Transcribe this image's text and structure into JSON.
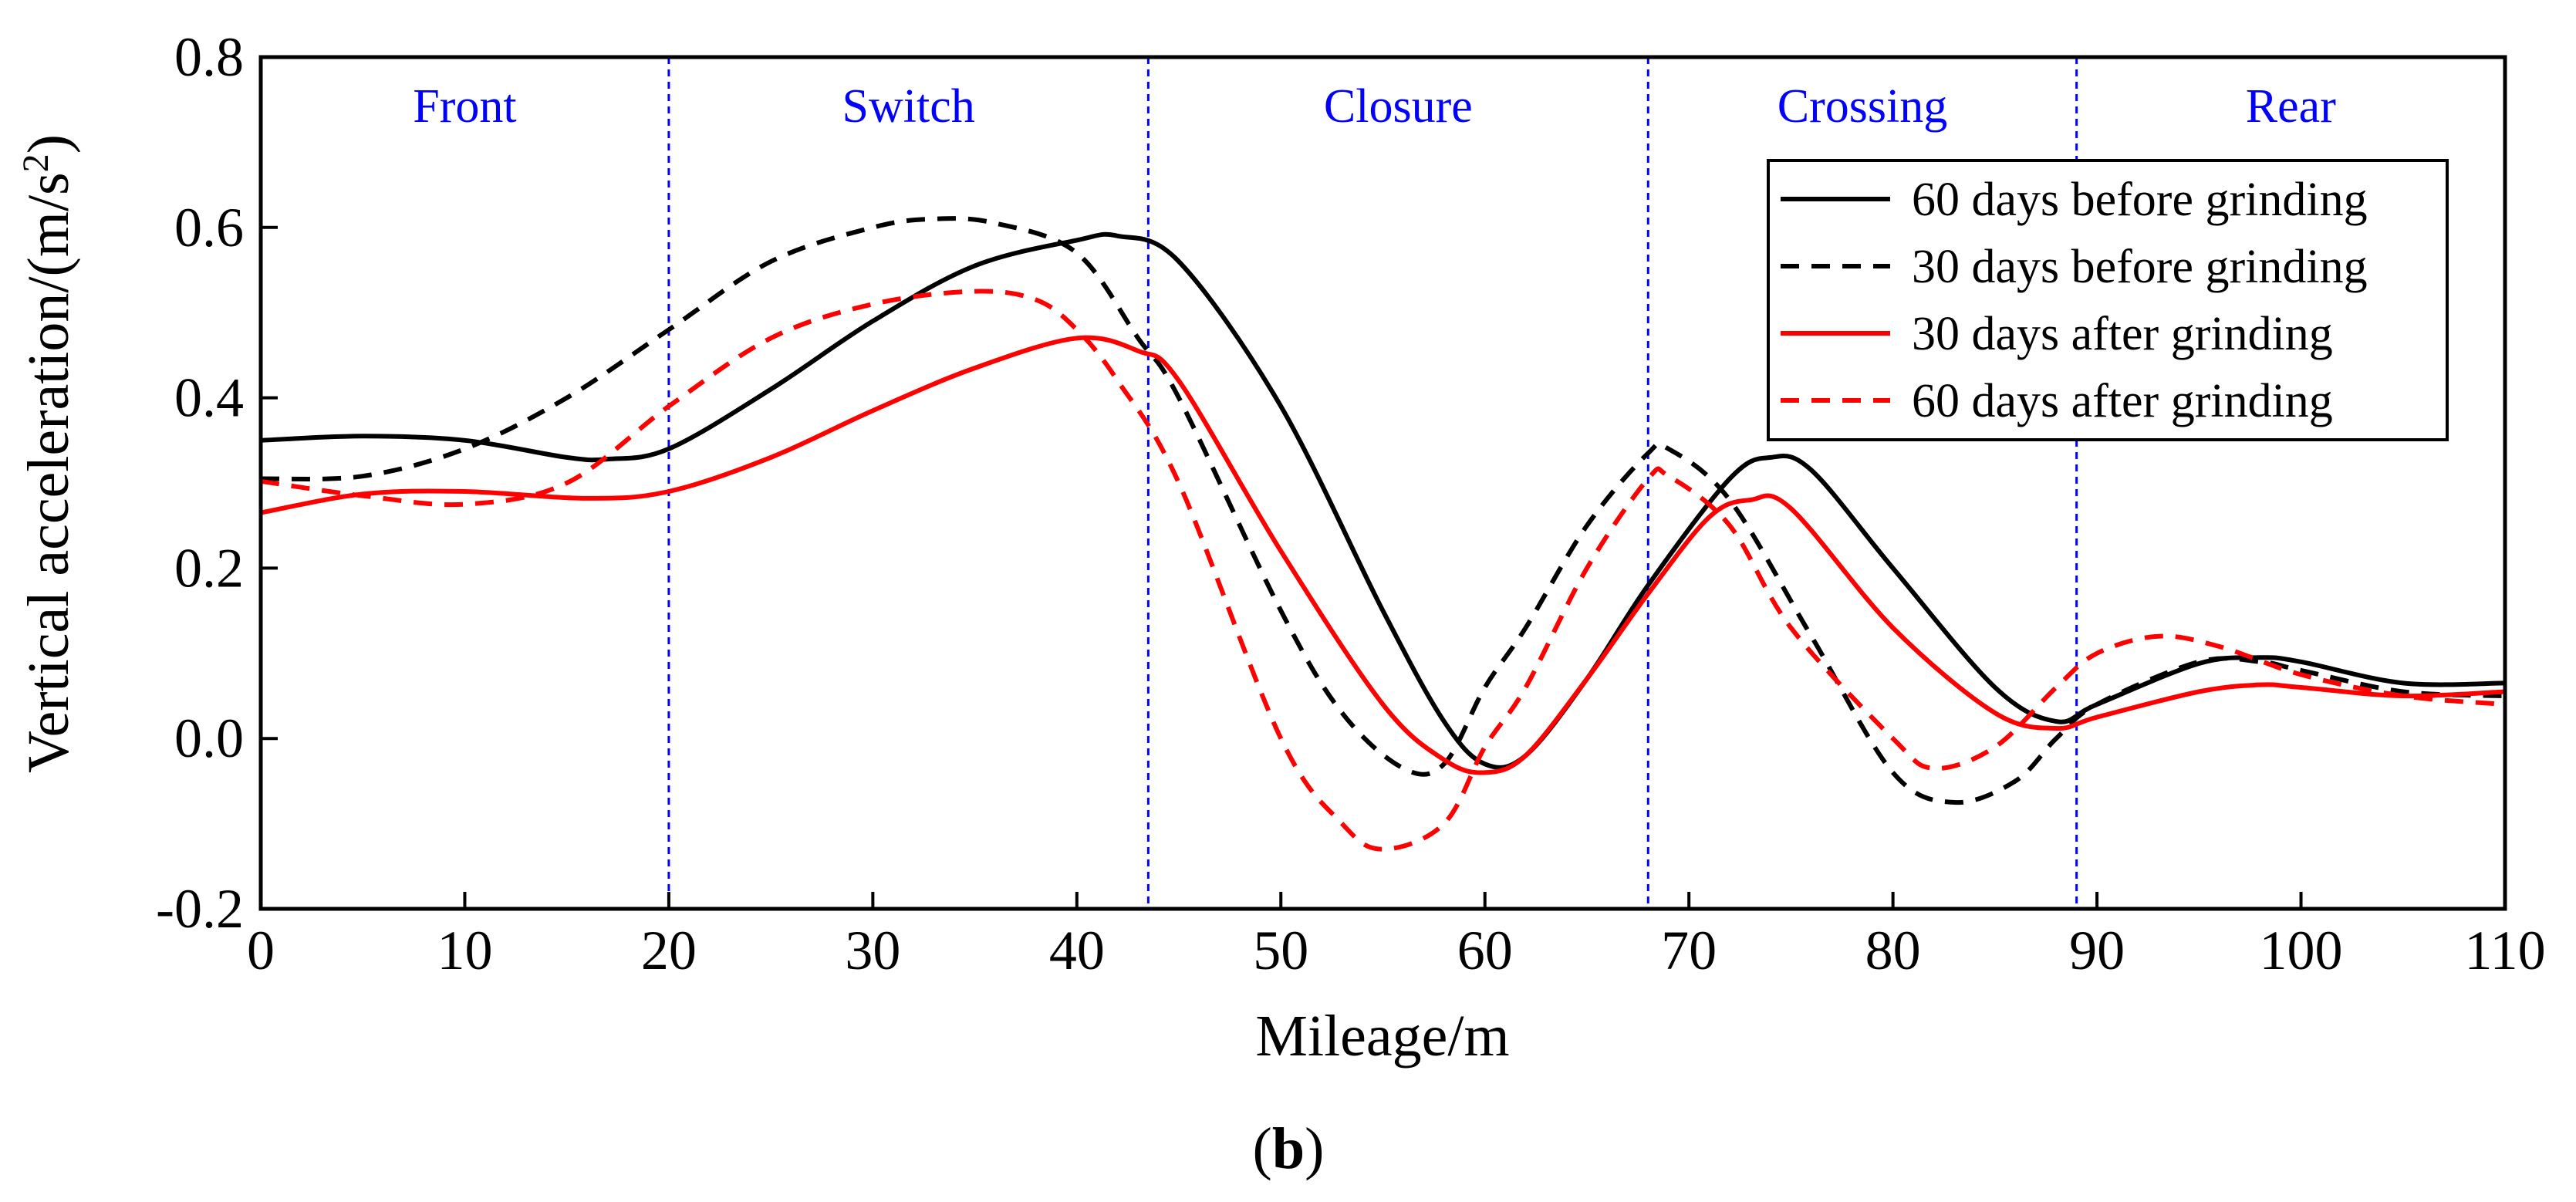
{
  "chart_data": {
    "type": "line",
    "xlabel": "Mileage/m",
    "ylabel": "Vertical acceleration/(m/s²)",
    "ylabel_parts": {
      "main": "Vertical acceleration/(m/s",
      "sup": "2",
      "tail": ")"
    },
    "xlim": [
      0,
      110
    ],
    "ylim": [
      -0.2,
      0.8
    ],
    "xticks": [
      0,
      10,
      20,
      30,
      40,
      50,
      60,
      70,
      80,
      90,
      100,
      110
    ],
    "yticks": [
      -0.2,
      0.0,
      0.2,
      0.4,
      0.6,
      0.8
    ],
    "ytick_labels": [
      "-0.2",
      "0.0",
      "0.2",
      "0.4",
      "0.6",
      "0.8"
    ],
    "xtick_labels": [
      "0",
      "10",
      "20",
      "30",
      "40",
      "50",
      "60",
      "70",
      "80",
      "90",
      "100",
      "110"
    ],
    "grid": false,
    "legend_position": "top-right",
    "figure_label": "(b)",
    "figure_label_parts": {
      "open": "(",
      "letter": "b",
      "close": ")"
    },
    "regions": [
      {
        "label": "Front",
        "start": 0,
        "end": 20
      },
      {
        "label": "Switch",
        "start": 20,
        "end": 43.5
      },
      {
        "label": "Closure",
        "start": 43.5,
        "end": 68
      },
      {
        "label": "Crossing",
        "start": 68,
        "end": 89
      },
      {
        "label": "Rear",
        "start": 89,
        "end": 110
      }
    ],
    "boundaries": [
      20,
      43.5,
      68,
      89
    ],
    "series": [
      {
        "name": "60 days before grinding",
        "color": "#000000",
        "dash": "solid",
        "x": [
          0,
          5,
          10,
          15,
          17,
          20,
          25,
          30,
          35,
          40,
          42,
          45,
          50,
          55,
          58,
          60,
          62,
          65,
          68,
          72,
          74,
          76,
          80,
          85,
          88,
          90,
          95,
          98,
          100,
          105,
          110
        ],
        "y": [
          0.35,
          0.355,
          0.35,
          0.33,
          0.328,
          0.34,
          0.41,
          0.49,
          0.555,
          0.585,
          0.59,
          0.56,
          0.39,
          0.15,
          0.02,
          -0.03,
          -0.02,
          0.07,
          0.18,
          0.305,
          0.33,
          0.315,
          0.2,
          0.06,
          0.02,
          0.04,
          0.088,
          0.095,
          0.09,
          0.065,
          0.065
        ]
      },
      {
        "name": "30 days before grinding",
        "color": "#000000",
        "dash": "dashed",
        "x": [
          0,
          5,
          10,
          15,
          20,
          25,
          30,
          33,
          36,
          40,
          43,
          45,
          50,
          53,
          56,
          58,
          60,
          62,
          65,
          68,
          69,
          72,
          76,
          80,
          83,
          86,
          88,
          90,
          95,
          98,
          100,
          105,
          110
        ],
        "y": [
          0.305,
          0.308,
          0.34,
          0.4,
          0.48,
          0.56,
          0.6,
          0.61,
          0.605,
          0.57,
          0.47,
          0.4,
          0.15,
          0.03,
          -0.035,
          -0.03,
          0.06,
          0.13,
          0.25,
          0.335,
          0.34,
          0.28,
          0.12,
          -0.04,
          -0.075,
          -0.05,
          0.0,
          0.04,
          0.09,
          0.09,
          0.08,
          0.055,
          0.05
        ]
      },
      {
        "name": "30 days after grinding",
        "color": "#ff0000",
        "dash": "solid",
        "x": [
          0,
          5,
          10,
          16,
          20,
          25,
          30,
          35,
          40,
          43,
          45,
          50,
          55,
          58,
          60,
          62,
          65,
          68,
          71,
          73,
          75,
          80,
          85,
          88,
          90,
          95,
          98,
          100,
          105,
          110
        ],
        "y": [
          0.265,
          0.287,
          0.29,
          0.282,
          0.29,
          0.33,
          0.385,
          0.435,
          0.47,
          0.455,
          0.42,
          0.22,
          0.04,
          -0.025,
          -0.04,
          -0.02,
          0.07,
          0.17,
          0.26,
          0.28,
          0.27,
          0.13,
          0.03,
          0.012,
          0.025,
          0.055,
          0.063,
          0.06,
          0.05,
          0.055
        ]
      },
      {
        "name": "60 days after grinding",
        "color": "#ff0000",
        "dash": "dashed",
        "x": [
          0,
          5,
          10,
          15,
          20,
          25,
          30,
          35,
          38,
          40,
          42,
          45,
          50,
          53,
          55,
          58,
          60,
          62,
          65,
          68,
          69,
          72,
          75,
          80,
          82,
          85,
          88,
          90,
          93,
          96,
          100,
          105,
          110
        ],
        "y": [
          0.302,
          0.285,
          0.275,
          0.3,
          0.39,
          0.47,
          0.51,
          0.525,
          0.515,
          0.48,
          0.42,
          0.3,
          0.0,
          -0.1,
          -0.13,
          -0.1,
          -0.01,
          0.06,
          0.2,
          0.305,
          0.308,
          0.25,
          0.13,
          0.0,
          -0.035,
          -0.01,
          0.06,
          0.1,
          0.12,
          0.108,
          0.075,
          0.05,
          0.04
        ]
      }
    ]
  }
}
